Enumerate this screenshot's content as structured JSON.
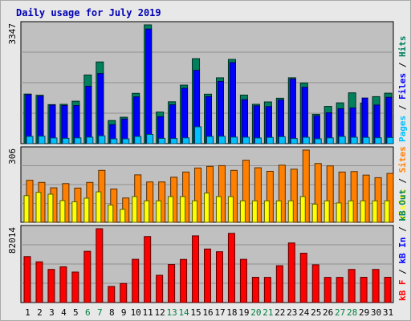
{
  "chart_data": {
    "type": "bar",
    "title": "Daily usage for July 2019",
    "days": [
      "1",
      "2",
      "3",
      "4",
      "5",
      "6",
      "7",
      "8",
      "9",
      "10",
      "11",
      "12",
      "13",
      "14",
      "15",
      "16",
      "17",
      "18",
      "19",
      "20",
      "21",
      "22",
      "23",
      "24",
      "25",
      "26",
      "27",
      "28",
      "29",
      "30",
      "31"
    ],
    "weekend_days": [
      "6",
      "7",
      "13",
      "14",
      "20",
      "21",
      "27",
      "28"
    ],
    "colors": {
      "hits": "#00805c",
      "files": "#0000ff",
      "pages": "#00c0ff",
      "visits": "#ffff00",
      "sites": "#ff8000",
      "kbin": "#0000ff",
      "kbout": "#00805c",
      "kbf": "#ff0000",
      "weekend_tick": "#008040",
      "weekday_tick": "#000000",
      "panel_bg": "#c0c0c0",
      "grid": "#909090"
    },
    "panels": [
      {
        "id": "hits-files-pages",
        "ymax_label": "3347",
        "ymax": 3347,
        "legend": [
          {
            "text": "Pages",
            "color": "#00c0ff"
          },
          {
            "text": "Files",
            "color": "#0000ff"
          },
          {
            "text": "Hits",
            "color": "#00805c"
          }
        ],
        "series": [
          {
            "name": "Hits",
            "color": "#00805c",
            "values": [
              1398,
              1364,
              1100,
              1108,
              1196,
              1935,
              2302,
              651,
              745,
              1418,
              3347,
              891,
              1180,
              1650,
              2395,
              1395,
              1855,
              2374,
              1368,
              1109,
              1176,
              1281,
              1857,
              1710,
              827,
              1050,
              1150,
              1432,
              1145,
              1325,
              1423
            ]
          },
          {
            "name": "Files",
            "color": "#0000ff",
            "values": [
              1380,
              1340,
              1087,
              1075,
              1072,
              1617,
              1976,
              535,
              695,
              1318,
              3230,
              760,
              1094,
              1561,
              2066,
              1328,
              1755,
              2286,
              1240,
              1066,
              1046,
              1233,
              1822,
              1588,
              784,
              869,
              983,
              1006,
              1286,
              1088,
              1306
            ]
          },
          {
            "name": "Pages",
            "color": "#00c0ff",
            "values": [
              205,
              210,
              160,
              150,
              162,
              183,
              220,
              93,
              102,
              203,
              260,
              148,
              145,
              163,
              475,
              203,
              208,
              184,
              182,
              160,
              176,
              197,
              144,
              180,
              137,
              163,
              202,
              180,
              176,
              166,
              172
            ]
          }
        ]
      },
      {
        "id": "visits-sites",
        "ymax_label": "306",
        "ymax": 306,
        "legend": [
          {
            "text": "Visits",
            "color": "#ffff00"
          },
          {
            "text": "Sites",
            "color": "#ff8000"
          }
        ],
        "series": [
          {
            "name": "Sites",
            "color": "#ff8000",
            "values": [
              178,
              169,
              146,
              164,
              145,
              169,
              220,
              141,
              103,
              201,
              171,
              171,
              191,
              213,
              230,
              237,
              240,
              220,
              263,
              231,
              216,
              242,
              225,
              306,
              249,
              239,
              213,
              215,
              200,
              189,
              207
            ]
          },
          {
            "name": "Visits",
            "color": "#ffff00",
            "values": [
              113,
              127,
              119,
              92,
              87,
              102,
              129,
              73,
              55,
              109,
              91,
              91,
              109,
              109,
              91,
              124,
              109,
              109,
              91,
              91,
              91,
              91,
              91,
              109,
              77,
              91,
              82,
              91,
              91,
              91,
              91
            ]
          }
        ]
      },
      {
        "id": "kbf-kbin-kbout",
        "ymax_label": "82014",
        "ymax": 82014,
        "legend": [
          {
            "text": "kB F",
            "color": "#ff0000"
          },
          {
            "text": "kB In",
            "color": "#0000ff"
          },
          {
            "text": "kB Out",
            "color": "#00805c"
          }
        ],
        "series": [
          {
            "name": "kB F",
            "color": "#ff0000",
            "values": [
              51022,
              45233,
              36791,
              39703,
              33869,
              56938,
              82014,
              17893,
              21172,
              48016,
              73320,
              30289,
              42272,
              47885,
              74073,
              59473,
              56458,
              76863,
              48016,
              28052,
              27940,
              40964,
              66201,
              54811,
              41931,
              27940,
              27940,
              36791,
              28052,
              36791,
              28052
            ]
          }
        ]
      }
    ]
  }
}
